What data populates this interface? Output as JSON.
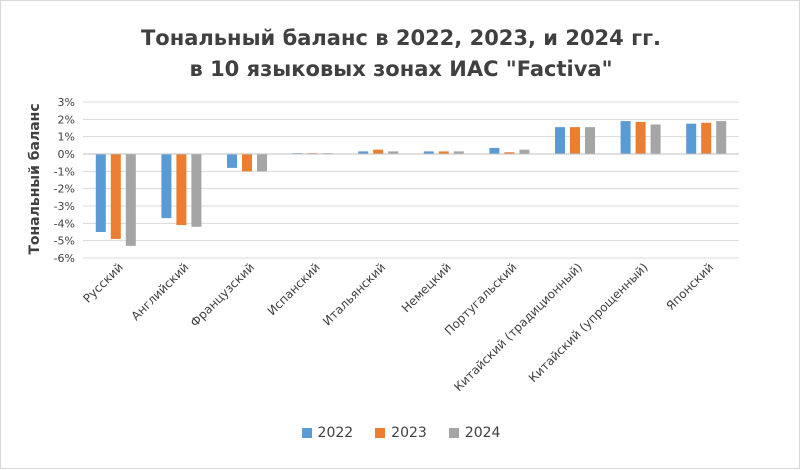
{
  "chart_data": {
    "type": "bar",
    "title": "Тональный баланс в 2022, 2023, и 2024 гг.",
    "subtitle": "в 10 языковых зонах ИАС \"Factiva\"",
    "ylabel": "Тональный баланс",
    "xlabel": "",
    "ylim": [
      -6,
      3
    ],
    "yticks": [
      3,
      2,
      1,
      0,
      -1,
      -2,
      -3,
      -4,
      -5,
      -6
    ],
    "ytick_labels": [
      "3%",
      "2%",
      "1%",
      "0%",
      "-1%",
      "-2%",
      "-3%",
      "-4%",
      "-5%",
      "-6%"
    ],
    "grid": true,
    "legend_position": "bottom",
    "categories": [
      "Русский",
      "Английский",
      "Французский",
      "Испанский",
      "Итальянский",
      "Немецкий",
      "Португальский",
      "Китайский (традиционный)",
      "Китайский (упрощенный)",
      "Японский"
    ],
    "series": [
      {
        "name": "2022",
        "color": "#5b9bd5",
        "values": [
          -4.5,
          -3.7,
          -0.8,
          0.05,
          0.15,
          0.15,
          0.35,
          1.55,
          1.9,
          1.75
        ]
      },
      {
        "name": "2023",
        "color": "#ed7d31",
        "values": [
          -4.9,
          -4.1,
          -1.0,
          0.05,
          0.25,
          0.15,
          0.1,
          1.55,
          1.85,
          1.8
        ]
      },
      {
        "name": "2024",
        "color": "#a5a5a5",
        "values": [
          -5.3,
          -4.2,
          -1.0,
          0.05,
          0.15,
          0.15,
          0.25,
          1.55,
          1.7,
          1.9
        ]
      }
    ]
  }
}
